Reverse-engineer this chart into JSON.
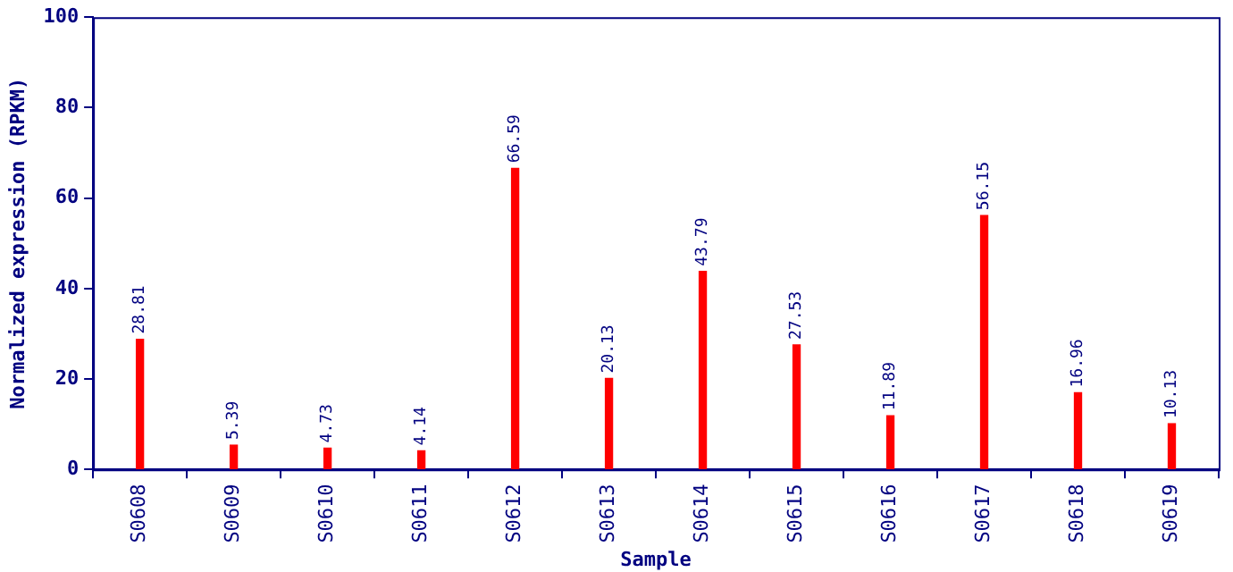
{
  "chart_data": {
    "type": "bar",
    "xlabel": "Sample",
    "ylabel": "Normalized expression (RPKM)",
    "categories": [
      "S0608",
      "S0609",
      "S0610",
      "S0611",
      "S0612",
      "S0613",
      "S0614",
      "S0615",
      "S0616",
      "S0617",
      "S0618",
      "S0619"
    ],
    "values": [
      28.81,
      5.39,
      4.73,
      4.14,
      66.59,
      20.13,
      43.79,
      27.53,
      11.89,
      56.15,
      16.96,
      10.13
    ],
    "color": "#ff0000",
    "ylim": [
      0,
      100
    ],
    "yticks": [
      0,
      20,
      40,
      60,
      80,
      100
    ],
    "data_labels": true,
    "grid": false,
    "legend": false
  }
}
